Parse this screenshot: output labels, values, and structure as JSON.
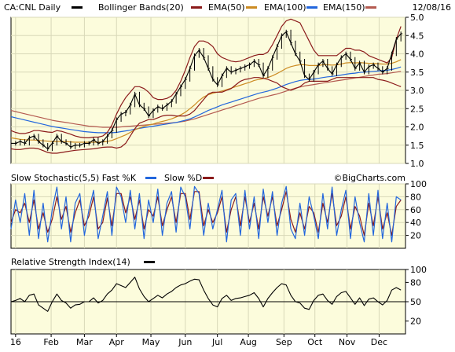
{
  "chart_data": [
    {
      "type": "line",
      "panel": "price",
      "header": {
        "symbol_text": "CA:CNL Daily",
        "bollinger_label": "Bollinger Bands(20)",
        "ema50_label": "EMA(50)",
        "ema100_label": "EMA(100)",
        "ema150_label": "EMA(150)",
        "date_text": "12/08/16"
      },
      "ylim": [
        1.0,
        5.0
      ],
      "y_ticks": [
        "1.0",
        "1.5",
        "2.0",
        "2.5",
        "3.0",
        "3.5",
        "4.0",
        "4.5",
        "5.0"
      ],
      "colors": {
        "price": "#000000",
        "bollinger": "#8b1a1a",
        "ema50": "#cc8b22",
        "ema100": "#2266dd",
        "ema150": "#b45a50"
      },
      "t": [
        0,
        4,
        8,
        12,
        16,
        20,
        24,
        28,
        32,
        36,
        40,
        44,
        48,
        52,
        56,
        60,
        64,
        68,
        72,
        76,
        80,
        84,
        88,
        92,
        96,
        100,
        104,
        108,
        112,
        116,
        120,
        124,
        128,
        132,
        136,
        140,
        144,
        148,
        152,
        156,
        160,
        164,
        168,
        172,
        176,
        180,
        184,
        188,
        192,
        196,
        200,
        204,
        208,
        212,
        216,
        220,
        224,
        228,
        232,
        236,
        240,
        244,
        248,
        252,
        256,
        260,
        264,
        268,
        272,
        276,
        280,
        284,
        288,
        292,
        296,
        300,
        304,
        308,
        312,
        316,
        320,
        324,
        328,
        332,
        336,
        340
      ],
      "close": [
        1.55,
        1.55,
        1.6,
        1.55,
        1.7,
        1.75,
        1.6,
        1.5,
        1.4,
        1.55,
        1.75,
        1.6,
        1.55,
        1.45,
        1.5,
        1.5,
        1.55,
        1.55,
        1.65,
        1.55,
        1.6,
        1.75,
        1.9,
        2.2,
        2.35,
        2.4,
        2.6,
        2.9,
        2.6,
        2.5,
        2.3,
        2.45,
        2.55,
        2.5,
        2.6,
        2.7,
        2.9,
        3.1,
        3.3,
        3.6,
        3.95,
        4.1,
        3.9,
        3.6,
        3.3,
        3.15,
        3.4,
        3.6,
        3.5,
        3.55,
        3.6,
        3.65,
        3.7,
        3.8,
        3.7,
        3.4,
        3.6,
        3.9,
        4.2,
        4.5,
        4.6,
        4.3,
        4.0,
        3.8,
        3.4,
        3.3,
        3.5,
        3.7,
        3.8,
        3.6,
        3.45,
        3.7,
        3.9,
        4.0,
        3.85,
        3.6,
        3.75,
        3.5,
        3.65,
        3.7,
        3.6,
        3.5,
        3.6,
        4.0,
        4.4,
        4.55
      ],
      "bb_upper": [
        1.9,
        1.85,
        1.82,
        1.82,
        1.85,
        1.9,
        1.9,
        1.88,
        1.86,
        1.85,
        1.9,
        1.88,
        1.84,
        1.8,
        1.75,
        1.72,
        1.7,
        1.7,
        1.72,
        1.72,
        1.75,
        1.85,
        2.05,
        2.35,
        2.6,
        2.8,
        2.95,
        3.1,
        3.1,
        3.05,
        2.95,
        2.8,
        2.75,
        2.75,
        2.78,
        2.85,
        3.0,
        3.25,
        3.55,
        3.9,
        4.2,
        4.35,
        4.35,
        4.3,
        4.2,
        4.0,
        3.9,
        3.85,
        3.8,
        3.78,
        3.8,
        3.85,
        3.9,
        3.95,
        3.98,
        3.98,
        4.05,
        4.25,
        4.5,
        4.75,
        4.9,
        4.95,
        4.9,
        4.85,
        4.6,
        4.35,
        4.1,
        3.95,
        3.95,
        3.95,
        3.95,
        3.95,
        4.05,
        4.15,
        4.15,
        4.1,
        4.1,
        4.05,
        3.95,
        3.9,
        3.85,
        3.8,
        3.75,
        3.9,
        4.4,
        4.75
      ],
      "bb_lower": [
        1.4,
        1.38,
        1.38,
        1.4,
        1.42,
        1.42,
        1.4,
        1.35,
        1.3,
        1.28,
        1.28,
        1.3,
        1.32,
        1.34,
        1.36,
        1.37,
        1.38,
        1.39,
        1.4,
        1.42,
        1.44,
        1.45,
        1.45,
        1.42,
        1.45,
        1.55,
        1.75,
        1.95,
        2.1,
        2.15,
        2.2,
        2.2,
        2.25,
        2.3,
        2.32,
        2.32,
        2.3,
        2.3,
        2.3,
        2.35,
        2.45,
        2.6,
        2.75,
        2.9,
        2.95,
        2.95,
        2.95,
        3.0,
        3.05,
        3.15,
        3.25,
        3.3,
        3.32,
        3.35,
        3.35,
        3.33,
        3.3,
        3.25,
        3.2,
        3.1,
        3.05,
        3.0,
        3.05,
        3.1,
        3.2,
        3.25,
        3.25,
        3.25,
        3.25,
        3.25,
        3.3,
        3.35,
        3.35,
        3.35,
        3.35,
        3.35,
        3.35,
        3.35,
        3.35,
        3.35,
        3.3,
        3.28,
        3.25,
        3.2,
        3.15,
        3.1
      ],
      "ema50": [
        1.7,
        1.68,
        1.66,
        1.65,
        1.64,
        1.64,
        1.63,
        1.62,
        1.61,
        1.6,
        1.6,
        1.6,
        1.6,
        1.59,
        1.58,
        1.58,
        1.58,
        1.58,
        1.58,
        1.58,
        1.59,
        1.6,
        1.63,
        1.68,
        1.73,
        1.78,
        1.85,
        1.92,
        1.97,
        2.02,
        2.05,
        2.08,
        2.12,
        2.15,
        2.18,
        2.22,
        2.27,
        2.33,
        2.4,
        2.5,
        2.6,
        2.72,
        2.82,
        2.88,
        2.92,
        2.95,
        2.98,
        3.02,
        3.06,
        3.1,
        3.14,
        3.18,
        3.22,
        3.27,
        3.3,
        3.32,
        3.35,
        3.4,
        3.46,
        3.53,
        3.6,
        3.65,
        3.68,
        3.7,
        3.7,
        3.68,
        3.68,
        3.68,
        3.7,
        3.7,
        3.69,
        3.7,
        3.72,
        3.75,
        3.76,
        3.75,
        3.76,
        3.75,
        3.74,
        3.74,
        3.73,
        3.72,
        3.72,
        3.74,
        3.78,
        3.84
      ],
      "ema100": [
        2.28,
        2.25,
        2.22,
        2.19,
        2.16,
        2.13,
        2.1,
        2.07,
        2.04,
        2.01,
        1.99,
        1.97,
        1.95,
        1.93,
        1.91,
        1.89,
        1.87,
        1.86,
        1.85,
        1.84,
        1.84,
        1.84,
        1.84,
        1.85,
        1.87,
        1.89,
        1.91,
        1.94,
        1.96,
        1.98,
        2.0,
        2.02,
        2.04,
        2.06,
        2.08,
        2.1,
        2.12,
        2.15,
        2.18,
        2.22,
        2.27,
        2.33,
        2.39,
        2.45,
        2.5,
        2.55,
        2.6,
        2.64,
        2.68,
        2.72,
        2.76,
        2.8,
        2.84,
        2.88,
        2.92,
        2.95,
        2.98,
        3.02,
        3.06,
        3.11,
        3.16,
        3.2,
        3.24,
        3.27,
        3.29,
        3.3,
        3.31,
        3.33,
        3.35,
        3.37,
        3.38,
        3.4,
        3.42,
        3.44,
        3.46,
        3.47,
        3.49,
        3.5,
        3.51,
        3.52,
        3.53,
        3.54,
        3.55,
        3.57,
        3.6,
        3.64
      ],
      "ema150": [
        2.45,
        2.42,
        2.39,
        2.36,
        2.33,
        2.3,
        2.27,
        2.24,
        2.21,
        2.18,
        2.16,
        2.14,
        2.12,
        2.1,
        2.08,
        2.06,
        2.04,
        2.02,
        2.01,
        2.0,
        1.99,
        1.99,
        1.99,
        1.99,
        2.0,
        2.01,
        2.02,
        2.03,
        2.04,
        2.05,
        2.06,
        2.07,
        2.08,
        2.09,
        2.1,
        2.11,
        2.12,
        2.14,
        2.16,
        2.19,
        2.22,
        2.26,
        2.3,
        2.34,
        2.38,
        2.42,
        2.46,
        2.5,
        2.54,
        2.58,
        2.62,
        2.66,
        2.7,
        2.74,
        2.78,
        2.81,
        2.84,
        2.87,
        2.9,
        2.94,
        2.98,
        3.02,
        3.06,
        3.09,
        3.12,
        3.14,
        3.16,
        3.18,
        3.2,
        3.22,
        3.24,
        3.26,
        3.28,
        3.3,
        3.32,
        3.34,
        3.36,
        3.38,
        3.4,
        3.42,
        3.44,
        3.45,
        3.46,
        3.48,
        3.5,
        3.52
      ]
    },
    {
      "type": "line",
      "panel": "stochastic",
      "header": {
        "title_text": "Slow Stochastic(5,5) Fast %K",
        "slowd_label": "Slow %D",
        "watermark": "©BigCharts.com"
      },
      "ylim": [
        0,
        100
      ],
      "y_ticks": [
        "20",
        "40",
        "60",
        "80",
        "100"
      ],
      "colors": {
        "fast_k": "#2266dd",
        "slow_d": "#8b1a1a"
      },
      "t": [
        0,
        4,
        8,
        12,
        16,
        20,
        24,
        28,
        32,
        36,
        40,
        44,
        48,
        52,
        56,
        60,
        64,
        68,
        72,
        76,
        80,
        84,
        88,
        92,
        96,
        100,
        104,
        108,
        112,
        116,
        120,
        124,
        128,
        132,
        136,
        140,
        144,
        148,
        152,
        156,
        160,
        164,
        168,
        172,
        176,
        180,
        184,
        188,
        192,
        196,
        200,
        204,
        208,
        212,
        216,
        220,
        224,
        228,
        232,
        236,
        240,
        244,
        248,
        252,
        256,
        260,
        264,
        268,
        272,
        276,
        280,
        284,
        288,
        292,
        296,
        300,
        304,
        308,
        312,
        316,
        320,
        324,
        328,
        332,
        336,
        340
      ],
      "fast_k": [
        30,
        75,
        40,
        85,
        20,
        90,
        15,
        70,
        10,
        60,
        95,
        30,
        80,
        10,
        70,
        85,
        20,
        60,
        90,
        15,
        50,
        88,
        20,
        95,
        80,
        40,
        90,
        30,
        85,
        15,
        75,
        40,
        92,
        20,
        70,
        88,
        25,
        95,
        80,
        30,
        96,
        85,
        20,
        70,
        30,
        60,
        90,
        10,
        75,
        85,
        20,
        90,
        30,
        80,
        15,
        92,
        40,
        88,
        20,
        70,
        96,
        30,
        15,
        70,
        20,
        80,
        50,
        15,
        85,
        30,
        95,
        20,
        60,
        90,
        15,
        80,
        40,
        10,
        85,
        20,
        90,
        15,
        70,
        10,
        80,
        75
      ],
      "slow_d": [
        40,
        60,
        55,
        70,
        40,
        75,
        30,
        55,
        25,
        45,
        80,
        45,
        65,
        25,
        55,
        75,
        35,
        50,
        80,
        30,
        40,
        78,
        35,
        85,
        85,
        55,
        80,
        45,
        75,
        30,
        60,
        50,
        80,
        35,
        60,
        80,
        40,
        85,
        85,
        45,
        88,
        88,
        35,
        60,
        40,
        55,
        80,
        25,
        60,
        80,
        35,
        80,
        40,
        70,
        30,
        80,
        50,
        80,
        35,
        60,
        88,
        45,
        25,
        55,
        30,
        65,
        55,
        25,
        70,
        40,
        85,
        35,
        50,
        80,
        30,
        65,
        50,
        20,
        70,
        35,
        80,
        30,
        55,
        20,
        65,
        75
      ]
    },
    {
      "type": "line",
      "panel": "rsi",
      "header": {
        "title_text": "Relative Strength Index(14)"
      },
      "ylim": [
        0,
        100
      ],
      "y_ticks": [
        "20",
        "50",
        "80",
        "100"
      ],
      "reference_line": 50,
      "colors": {
        "rsi": "#000000"
      },
      "t": [
        0,
        4,
        8,
        12,
        16,
        20,
        24,
        28,
        32,
        36,
        40,
        44,
        48,
        52,
        56,
        60,
        64,
        68,
        72,
        76,
        80,
        84,
        88,
        92,
        96,
        100,
        104,
        108,
        112,
        116,
        120,
        124,
        128,
        132,
        136,
        140,
        144,
        148,
        152,
        156,
        160,
        164,
        168,
        172,
        176,
        180,
        184,
        188,
        192,
        196,
        200,
        204,
        208,
        212,
        216,
        220,
        224,
        228,
        232,
        236,
        240,
        244,
        248,
        252,
        256,
        260,
        264,
        268,
        272,
        276,
        280,
        284,
        288,
        292,
        296,
        300,
        304,
        308,
        312,
        316,
        320,
        324,
        328,
        332,
        336,
        340
      ],
      "rsi": [
        50,
        52,
        55,
        50,
        60,
        62,
        45,
        40,
        35,
        50,
        62,
        52,
        48,
        40,
        45,
        46,
        50,
        50,
        56,
        48,
        52,
        62,
        68,
        78,
        75,
        72,
        80,
        88,
        70,
        58,
        50,
        55,
        60,
        56,
        62,
        66,
        72,
        76,
        78,
        82,
        85,
        84,
        68,
        55,
        45,
        42,
        55,
        60,
        52,
        55,
        56,
        58,
        60,
        64,
        55,
        42,
        55,
        64,
        72,
        78,
        76,
        60,
        50,
        48,
        40,
        38,
        52,
        60,
        62,
        52,
        46,
        58,
        64,
        66,
        56,
        46,
        56,
        44,
        54,
        56,
        50,
        45,
        52,
        68,
        72,
        68
      ]
    },
    {
      "type": "axis",
      "panel": "time",
      "x_tick_labels": [
        "16",
        "Feb",
        "Mar",
        "Apr",
        "May",
        "Jun",
        "Jul",
        "Aug",
        "Sep",
        "Oct",
        "Nov",
        "Dec"
      ],
      "x_tick_positions": [
        4,
        35,
        64,
        92,
        122,
        152,
        180,
        207,
        238,
        265,
        293,
        321
      ]
    }
  ]
}
